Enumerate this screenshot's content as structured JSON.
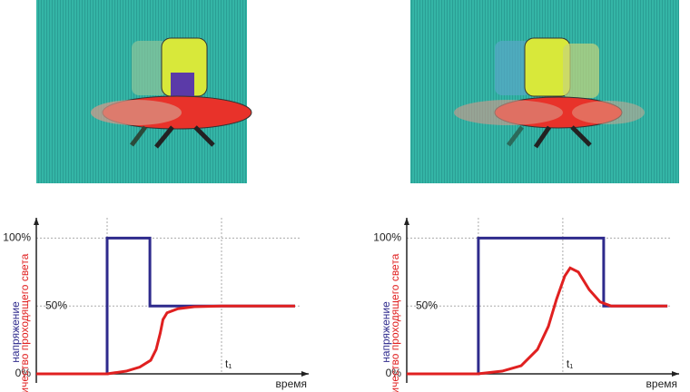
{
  "chart_data": [
    {
      "type": "line",
      "xlabel": "время",
      "series": [
        {
          "name": "напряжение",
          "color": "#2e2a8c",
          "x": [
            0,
            26,
            26,
            41.7,
            41.7,
            95
          ],
          "values": [
            0,
            0,
            100,
            100,
            50,
            50
          ]
        },
        {
          "name": "количество проходящего света",
          "color": "#e02020",
          "x": [
            0,
            26,
            33,
            38,
            42,
            44,
            45.5,
            46.5,
            48,
            52,
            58,
            68,
            95
          ],
          "values": [
            0,
            0,
            2,
            5,
            10,
            18,
            30,
            40,
            45,
            48,
            49.5,
            50,
            50
          ]
        }
      ],
      "xlim": [
        0,
        100
      ],
      "ylim": [
        0,
        115
      ],
      "yticks": [
        {
          "value": 0,
          "label": "0%"
        },
        {
          "value": 50,
          "label": "50%"
        },
        {
          "value": 100,
          "label": "100%"
        }
      ],
      "xgrid": [
        26,
        68
      ],
      "annotation": {
        "text": "t₁",
        "x": 68
      }
    },
    {
      "type": "line",
      "xlabel": "время",
      "series": [
        {
          "name": "напряжение",
          "color": "#2e2a8c",
          "x": [
            0,
            26.3,
            26.3,
            72.3,
            72.3,
            95.7
          ],
          "values": [
            0,
            0,
            100,
            100,
            50,
            50
          ]
        },
        {
          "name": "количество проходящего света",
          "color": "#e02020",
          "x": [
            0,
            26,
            35,
            42,
            48,
            52,
            55,
            58,
            60,
            63,
            67,
            71,
            75,
            95.7
          ],
          "values": [
            0,
            0,
            2,
            6,
            18,
            35,
            55,
            72,
            78,
            75,
            62,
            53,
            50,
            50
          ]
        }
      ],
      "xlim": [
        0,
        100
      ],
      "ylim": [
        0,
        115
      ],
      "yticks": [
        {
          "value": 0,
          "label": "0%"
        },
        {
          "value": 50,
          "label": "50%"
        },
        {
          "value": 100,
          "label": "100%"
        }
      ],
      "xgrid": [
        26.3,
        57.3
      ],
      "annotation": {
        "text": "t₁",
        "x": 57.3
      }
    }
  ]
}
